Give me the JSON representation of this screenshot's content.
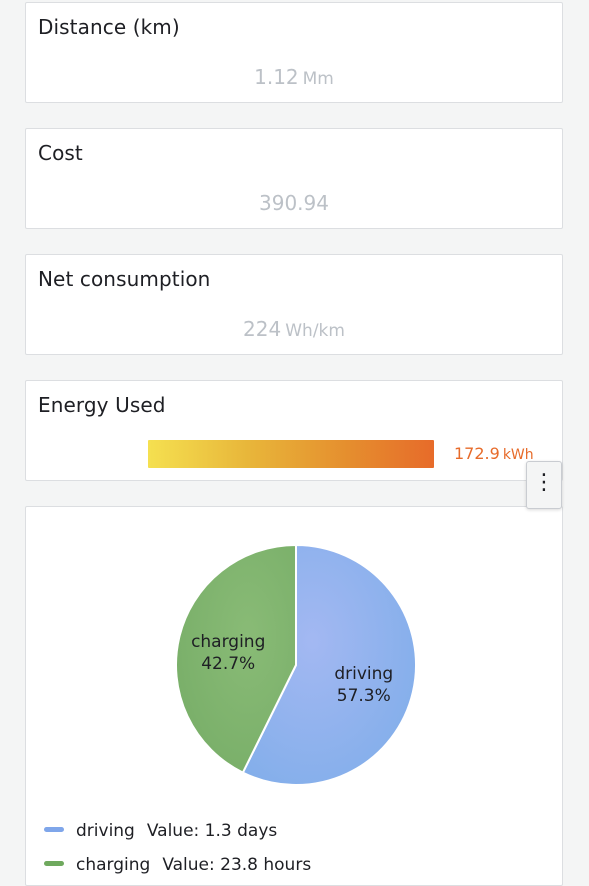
{
  "stats": {
    "distance": {
      "title": "Distance (km)",
      "value": "1.12",
      "unit": "Mm"
    },
    "cost": {
      "title": "Cost",
      "value": "390.94"
    },
    "net_consumption": {
      "title": "Net consumption",
      "value": "224",
      "unit": "Wh/km"
    }
  },
  "energy": {
    "title": "Energy Used",
    "value": "172.9",
    "unit": "kWh",
    "fill_fraction": 1.0,
    "color": "#e76b2a"
  },
  "menu": {
    "icon": "more-vertical-icon"
  },
  "chart_data": {
    "type": "pie",
    "slices": [
      {
        "name": "driving",
        "percent": 57.3,
        "percent_label": "57.3%",
        "legend_value": "Value: 1.3 days",
        "color": "#8ab0ef"
      },
      {
        "name": "charging",
        "percent": 42.7,
        "percent_label": "42.7%",
        "legend_value": "Value: 23.8 hours",
        "color": "#7db36b"
      }
    ]
  }
}
